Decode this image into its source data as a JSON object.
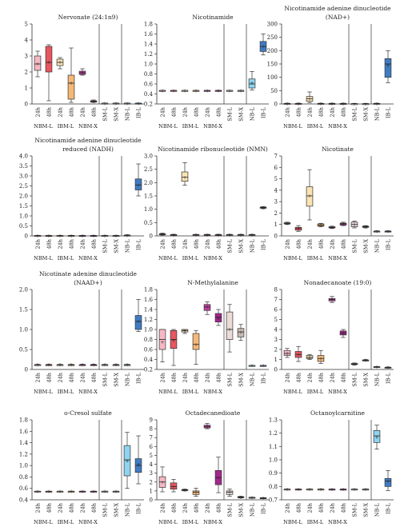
{
  "figure": {
    "group_labels": [
      "NBM-L",
      "IBM-L",
      "NBM-X"
    ],
    "x_tick_labels": [
      "24h",
      "48h",
      "24h",
      "48h",
      "24h",
      "48h",
      "SM-L",
      "SM-X",
      "NB-L",
      "IB-L"
    ]
  },
  "colors": {
    "nbm_l_24h": "#f6b8c4",
    "nbm_l_48h": "#e8565f",
    "ibm_l_24h": "#fbe3b2",
    "ibm_l_48h": "#f6b876",
    "nbm_x_24h": "#c23ea0",
    "nbm_x_48h": "#a4268e",
    "sm_l": "#ecdcd8",
    "sm_x": "#c9b8b2",
    "nb_l": "#8fd4f0",
    "ib_l": "#3f7cc4"
  },
  "chart_data": [
    {
      "type": "box",
      "title": "Nervonate (24:1n9)",
      "ylim": [
        0,
        5
      ],
      "yticks": [
        "0",
        "1",
        "2",
        "3",
        "4",
        "5"
      ],
      "boxes": [
        [
          1.7,
          2.1,
          2.5,
          3.0,
          3.3,
          2.5
        ],
        [
          0.2,
          2.0,
          2.6,
          3.6,
          3.7,
          2.6
        ],
        [
          2.2,
          2.4,
          2.6,
          2.8,
          2.9,
          2.6
        ],
        [
          0.1,
          0.3,
          1.3,
          1.8,
          3.5,
          1.3
        ],
        [
          1.8,
          1.85,
          1.95,
          2.05,
          2.2,
          1.95
        ],
        [
          0.1,
          0.12,
          0.15,
          0.2,
          0.25,
          0.15
        ],
        [
          0.03,
          0.03,
          0.04,
          0.05,
          0.06,
          0.04
        ],
        [
          0.03,
          0.03,
          0.04,
          0.05,
          0.06,
          0.04
        ],
        [
          0.03,
          0.03,
          0.04,
          0.05,
          0.06,
          0.04
        ],
        [
          0.03,
          0.03,
          0.04,
          0.05,
          0.06,
          0.04
        ]
      ]
    },
    {
      "type": "box",
      "title": "Nicotinamide",
      "ylim": [
        0.2,
        1.8
      ],
      "yticks": [
        "0.2",
        "0.4",
        "0.6",
        "0.8",
        "1.0",
        "1.2",
        "1.4",
        "1.6",
        "1.8"
      ],
      "boxes": [
        [
          0.47,
          0.47,
          0.47,
          0.47,
          0.47,
          0.47
        ],
        [
          0.47,
          0.47,
          0.47,
          0.47,
          0.47,
          0.47
        ],
        [
          0.47,
          0.47,
          0.47,
          0.47,
          0.47,
          0.47
        ],
        [
          0.47,
          0.47,
          0.47,
          0.47,
          0.47,
          0.47
        ],
        [
          0.47,
          0.47,
          0.47,
          0.47,
          0.47,
          0.47
        ],
        [
          0.47,
          0.47,
          0.47,
          0.47,
          0.47,
          0.47
        ],
        [
          0.47,
          0.47,
          0.47,
          0.47,
          0.47,
          0.47
        ],
        [
          0.47,
          0.47,
          0.47,
          0.47,
          0.47,
          0.47
        ],
        [
          0.48,
          0.52,
          0.6,
          0.7,
          0.85,
          0.62
        ],
        [
          1.18,
          1.25,
          1.35,
          1.45,
          1.6,
          1.35
        ]
      ]
    },
    {
      "type": "box",
      "title": "Nicotinamide adenine dinucleotide (NAD+)",
      "ylim": [
        0,
        300
      ],
      "yticks": [
        "0",
        "50",
        "100",
        "150",
        "200",
        "250",
        "300"
      ],
      "boxes": [
        [
          0,
          0,
          1,
          2,
          3,
          1
        ],
        [
          0,
          0,
          1,
          2,
          3,
          1
        ],
        [
          5,
          10,
          20,
          28,
          45,
          20
        ],
        [
          0,
          0,
          1,
          2,
          3,
          1
        ],
        [
          0,
          0,
          1,
          2,
          3,
          1
        ],
        [
          0,
          0,
          1,
          2,
          3,
          1
        ],
        [
          0,
          0,
          1,
          1,
          2,
          1
        ],
        [
          0,
          0,
          1,
          1,
          2,
          1
        ],
        [
          0,
          0,
          1,
          2,
          3,
          1
        ],
        [
          80,
          100,
          150,
          170,
          200,
          145
        ]
      ]
    },
    {
      "type": "box",
      "title": "Nicotinamide adenine dinucleotide reduced (NADH)",
      "ylim": [
        0,
        4
      ],
      "yticks": [
        "0",
        "0.5",
        "1.0",
        "1.5",
        "2.0",
        "2.5",
        "3.0",
        "3.5",
        "4.0"
      ],
      "boxes": [
        [
          0,
          0,
          0.01,
          0.02,
          0.03,
          0.01
        ],
        [
          0,
          0,
          0.01,
          0.02,
          0.03,
          0.01
        ],
        [
          0,
          0,
          0.01,
          0.02,
          0.03,
          0.01
        ],
        [
          0,
          0,
          0.01,
          0.02,
          0.03,
          0.01
        ],
        [
          0,
          0,
          0.01,
          0.02,
          0.03,
          0.01
        ],
        [
          0,
          0,
          0.01,
          0.02,
          0.03,
          0.01
        ],
        [
          0,
          0,
          0.01,
          0.02,
          0.03,
          0.01
        ],
        [
          0,
          0,
          0.01,
          0.02,
          0.03,
          0.01
        ],
        [
          0,
          0.01,
          0.02,
          0.04,
          0.06,
          0.02
        ],
        [
          2.0,
          2.3,
          2.55,
          2.85,
          3.6,
          2.55
        ]
      ]
    },
    {
      "type": "box",
      "title": "Nicotinamide ribonucleotide (NMN)",
      "ylim": [
        0,
        3
      ],
      "yticks": [
        "0",
        "0.5",
        "1.0",
        "1.5",
        "2.0",
        "2.5",
        "3.0"
      ],
      "boxes": [
        [
          0.03,
          0.05,
          0.06,
          0.08,
          0.1,
          0.06
        ],
        [
          0.02,
          0.03,
          0.04,
          0.05,
          0.06,
          0.04
        ],
        [
          1.9,
          2.05,
          2.2,
          2.4,
          2.75,
          2.2
        ],
        [
          0.02,
          0.03,
          0.04,
          0.05,
          0.06,
          0.04
        ],
        [
          0.02,
          0.03,
          0.04,
          0.05,
          0.06,
          0.04
        ],
        [
          0.02,
          0.03,
          0.04,
          0.05,
          0.06,
          0.04
        ],
        [
          0.02,
          0.03,
          0.04,
          0.05,
          0.06,
          0.04
        ],
        [
          0.02,
          0.03,
          0.04,
          0.05,
          0.06,
          0.04
        ],
        [
          0.02,
          0.03,
          0.04,
          0.05,
          0.06,
          0.04
        ],
        [
          1.02,
          1.04,
          1.06,
          1.08,
          1.1,
          1.06
        ]
      ]
    },
    {
      "type": "box",
      "title": "Nicotinate",
      "ylim": [
        0,
        7
      ],
      "yticks": [
        "0",
        "1",
        "2",
        "3",
        "4",
        "5",
        "6",
        "7"
      ],
      "boxes": [
        [
          1.0,
          1.05,
          1.1,
          1.15,
          1.2,
          1.1
        ],
        [
          0.4,
          0.5,
          0.65,
          0.75,
          0.9,
          0.65
        ],
        [
          1.4,
          2.6,
          3.5,
          4.3,
          5.8,
          3.5
        ],
        [
          0.8,
          0.85,
          0.95,
          1.05,
          1.1,
          0.95
        ],
        [
          0.65,
          0.7,
          0.75,
          0.8,
          0.85,
          0.75
        ],
        [
          0.9,
          0.95,
          1.05,
          1.12,
          1.2,
          1.05
        ],
        [
          0.7,
          0.8,
          1.0,
          1.2,
          1.3,
          1.0
        ],
        [
          0.7,
          0.75,
          0.8,
          0.85,
          0.9,
          0.8
        ],
        [
          0.35,
          0.37,
          0.4,
          0.42,
          0.45,
          0.4
        ],
        [
          0.35,
          0.37,
          0.4,
          0.42,
          0.45,
          0.4
        ]
      ]
    },
    {
      "type": "box",
      "title": "Nicotinate adenine dinucleotide (NAAD+)",
      "ylim": [
        0,
        2.0
      ],
      "yticks": [
        "0",
        "0.5",
        "1.0",
        "1.5",
        "2.0"
      ],
      "boxes": [
        [
          0.12,
          0.12,
          0.12,
          0.12,
          0.13,
          0.12
        ],
        [
          0.12,
          0.12,
          0.12,
          0.12,
          0.13,
          0.12
        ],
        [
          0.12,
          0.12,
          0.12,
          0.12,
          0.13,
          0.12
        ],
        [
          0.12,
          0.12,
          0.12,
          0.12,
          0.13,
          0.12
        ],
        [
          0.12,
          0.12,
          0.12,
          0.12,
          0.13,
          0.12
        ],
        [
          0.12,
          0.12,
          0.12,
          0.12,
          0.13,
          0.12
        ],
        [
          0.12,
          0.12,
          0.12,
          0.12,
          0.13,
          0.12
        ],
        [
          0.12,
          0.12,
          0.12,
          0.12,
          0.13,
          0.12
        ],
        [
          0.12,
          0.12,
          0.12,
          0.12,
          0.13,
          0.12
        ],
        [
          0.95,
          1.0,
          1.2,
          1.35,
          1.75,
          1.2
        ]
      ]
    },
    {
      "type": "box",
      "title": "N-Methylalanine",
      "ylim": [
        0.2,
        1.8
      ],
      "yticks": [
        "0.2",
        "0.4",
        "0.6",
        "0.8",
        "1.0",
        "1.2",
        "1.4",
        "1.6",
        "1.8"
      ],
      "boxes": [
        [
          0.35,
          0.6,
          0.8,
          1.0,
          1.0,
          0.75
        ],
        [
          0.28,
          0.62,
          0.8,
          0.98,
          1.0,
          0.78
        ],
        [
          0.92,
          0.95,
          0.98,
          1.0,
          1.0,
          0.97
        ],
        [
          0.3,
          0.6,
          0.7,
          0.92,
          0.98,
          0.7
        ],
        [
          1.3,
          1.38,
          1.45,
          1.5,
          1.55,
          1.45
        ],
        [
          1.08,
          1.15,
          1.25,
          1.32,
          1.4,
          1.22
        ],
        [
          0.55,
          0.8,
          1.0,
          1.35,
          1.5,
          1.0
        ],
        [
          0.78,
          0.85,
          0.95,
          1.02,
          1.1,
          0.95
        ],
        [
          0.28,
          0.28,
          0.28,
          0.28,
          0.28,
          0.28
        ],
        [
          0.28,
          0.28,
          0.28,
          0.28,
          0.28,
          0.28
        ]
      ]
    },
    {
      "type": "box",
      "title": "Nonadecanoate (19:0)",
      "ylim": [
        0,
        8
      ],
      "yticks": [
        "0",
        "1",
        "2",
        "3",
        "4",
        "5",
        "6",
        "7",
        "8"
      ],
      "boxes": [
        [
          1.2,
          1.4,
          1.6,
          1.9,
          2.1,
          1.6
        ],
        [
          0.8,
          1.2,
          1.5,
          1.8,
          2.3,
          1.5
        ],
        [
          1.0,
          1.1,
          1.2,
          1.4,
          1.5,
          1.2
        ],
        [
          0.6,
          0.8,
          1.1,
          1.4,
          1.9,
          1.1
        ],
        [
          6.7,
          6.85,
          7.0,
          7.1,
          7.3,
          7.0
        ],
        [
          3.2,
          3.45,
          3.65,
          3.85,
          4.0,
          3.65
        ],
        [
          0.45,
          0.5,
          0.55,
          0.6,
          0.65,
          0.55
        ],
        [
          0.85,
          0.88,
          0.92,
          0.95,
          1.0,
          0.92
        ],
        [
          0.2,
          0.22,
          0.25,
          0.28,
          0.3,
          0.25
        ],
        [
          0.15,
          0.17,
          0.2,
          0.22,
          0.25,
          0.2
        ]
      ]
    },
    {
      "type": "box",
      "title": "o-Cresol sulfate",
      "ylim": [
        0.4,
        1.8
      ],
      "yticks": [
        "0.4",
        "0.6",
        "0.8",
        "1.0",
        "1.2",
        "1.4",
        "1.6",
        "1.8"
      ],
      "boxes": [
        [
          0.55,
          0.55,
          0.55,
          0.55,
          0.55,
          0.55
        ],
        [
          0.55,
          0.55,
          0.55,
          0.55,
          0.55,
          0.55
        ],
        [
          0.55,
          0.55,
          0.55,
          0.55,
          0.55,
          0.55
        ],
        [
          0.55,
          0.55,
          0.55,
          0.55,
          0.55,
          0.55
        ],
        [
          0.55,
          0.55,
          0.55,
          0.55,
          0.55,
          0.55
        ],
        [
          0.55,
          0.55,
          0.55,
          0.55,
          0.55,
          0.55
        ],
        [
          0.55,
          0.55,
          0.55,
          0.55,
          0.55,
          0.55
        ],
        [
          0.55,
          0.55,
          0.55,
          0.55,
          0.55,
          0.55
        ],
        [
          0.6,
          0.82,
          1.1,
          1.35,
          1.58,
          1.08
        ],
        [
          0.68,
          0.88,
          1.0,
          1.12,
          1.52,
          1.02
        ]
      ]
    },
    {
      "type": "box",
      "title": "Octadecanedioate",
      "ylim": [
        0,
        9
      ],
      "yticks": [
        "0",
        "1",
        "2",
        "3",
        "4",
        "5",
        "6",
        "7",
        "8",
        "9"
      ],
      "boxes": [
        [
          0.9,
          1.4,
          2.0,
          2.6,
          3.7,
          2.0
        ],
        [
          0.9,
          1.2,
          1.5,
          1.9,
          2.3,
          1.5
        ],
        [
          1.0,
          1.05,
          1.1,
          1.15,
          1.2,
          1.1
        ],
        [
          0.4,
          0.6,
          0.85,
          1.0,
          1.3,
          0.85
        ],
        [
          8.0,
          8.1,
          8.25,
          8.4,
          8.6,
          8.25
        ],
        [
          0.8,
          1.7,
          2.5,
          3.3,
          4.8,
          2.5
        ],
        [
          0.4,
          0.6,
          0.85,
          1.0,
          1.2,
          0.85
        ],
        [
          0.2,
          0.25,
          0.3,
          0.35,
          0.4,
          0.3
        ],
        [
          0.2,
          0.22,
          0.25,
          0.28,
          0.3,
          0.25
        ],
        [
          0.15,
          0.18,
          0.2,
          0.23,
          0.25,
          0.2
        ]
      ]
    },
    {
      "type": "box",
      "title": "Octanoylcarnitine",
      "ylim": [
        0.7,
        1.3
      ],
      "yticks": [
        "0.7",
        "0.8",
        "0.9",
        "1.0",
        "1.1",
        "1.2",
        "1.3"
      ],
      "boxes": [
        [
          0.78,
          0.78,
          0.78,
          0.78,
          0.78,
          0.78
        ],
        [
          0.78,
          0.78,
          0.78,
          0.78,
          0.78,
          0.78
        ],
        [
          0.78,
          0.78,
          0.78,
          0.78,
          0.78,
          0.78
        ],
        [
          0.78,
          0.78,
          0.78,
          0.78,
          0.78,
          0.78
        ],
        [
          0.78,
          0.78,
          0.78,
          0.78,
          0.78,
          0.78
        ],
        [
          0.78,
          0.78,
          0.78,
          0.78,
          0.78,
          0.78
        ],
        [
          0.78,
          0.78,
          0.78,
          0.78,
          0.78,
          0.78
        ],
        [
          0.78,
          0.78,
          0.78,
          0.78,
          0.78,
          0.78
        ],
        [
          1.08,
          1.13,
          1.18,
          1.22,
          1.26,
          1.17
        ],
        [
          0.77,
          0.8,
          0.84,
          0.86,
          0.92,
          0.84
        ]
      ]
    }
  ]
}
